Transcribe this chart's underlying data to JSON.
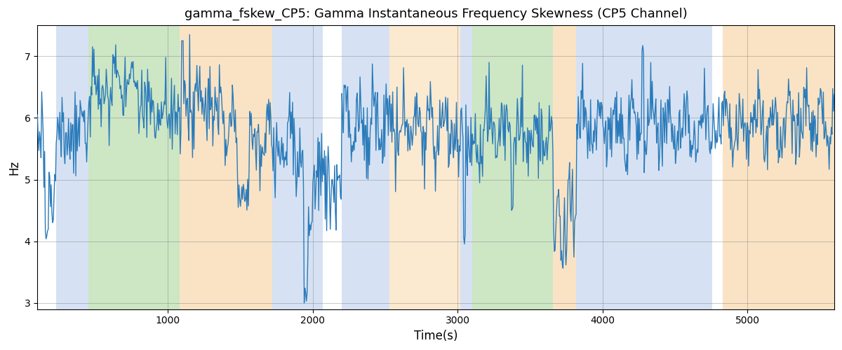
{
  "title": "gamma_fskew_CP5: Gamma Instantaneous Frequency Skewness (CP5 Channel)",
  "xlabel": "Time(s)",
  "ylabel": "Hz",
  "xlim": [
    100,
    5600
  ],
  "ylim": [
    2.9,
    7.5
  ],
  "yticks": [
    3,
    4,
    5,
    6,
    7
  ],
  "xticks": [
    1000,
    2000,
    3000,
    4000,
    5000
  ],
  "line_color": "#2b7bba",
  "line_width": 1.0,
  "grid": true,
  "background_color": "#ffffff",
  "colored_bands": [
    {
      "xmin": 230,
      "xmax": 450,
      "color": "#aec6e8",
      "alpha": 0.5
    },
    {
      "xmin": 450,
      "xmax": 1080,
      "color": "#90c97e",
      "alpha": 0.45
    },
    {
      "xmin": 1080,
      "xmax": 1720,
      "color": "#f5c98a",
      "alpha": 0.5
    },
    {
      "xmin": 1720,
      "xmax": 2070,
      "color": "#aec6e8",
      "alpha": 0.5
    },
    {
      "xmin": 2200,
      "xmax": 2530,
      "color": "#aec6e8",
      "alpha": 0.5
    },
    {
      "xmin": 2530,
      "xmax": 3020,
      "color": "#f5c98a",
      "alpha": 0.4
    },
    {
      "xmin": 3020,
      "xmax": 3100,
      "color": "#aec6e8",
      "alpha": 0.5
    },
    {
      "xmin": 3100,
      "xmax": 3660,
      "color": "#90c97e",
      "alpha": 0.45
    },
    {
      "xmin": 3660,
      "xmax": 3820,
      "color": "#f5c98a",
      "alpha": 0.5
    },
    {
      "xmin": 3820,
      "xmax": 4760,
      "color": "#aec6e8",
      "alpha": 0.5
    },
    {
      "xmin": 4830,
      "xmax": 5620,
      "color": "#f5c98a",
      "alpha": 0.5
    }
  ],
  "seed": 2023,
  "n_points": 1100,
  "time_start": 100,
  "time_end": 5600
}
